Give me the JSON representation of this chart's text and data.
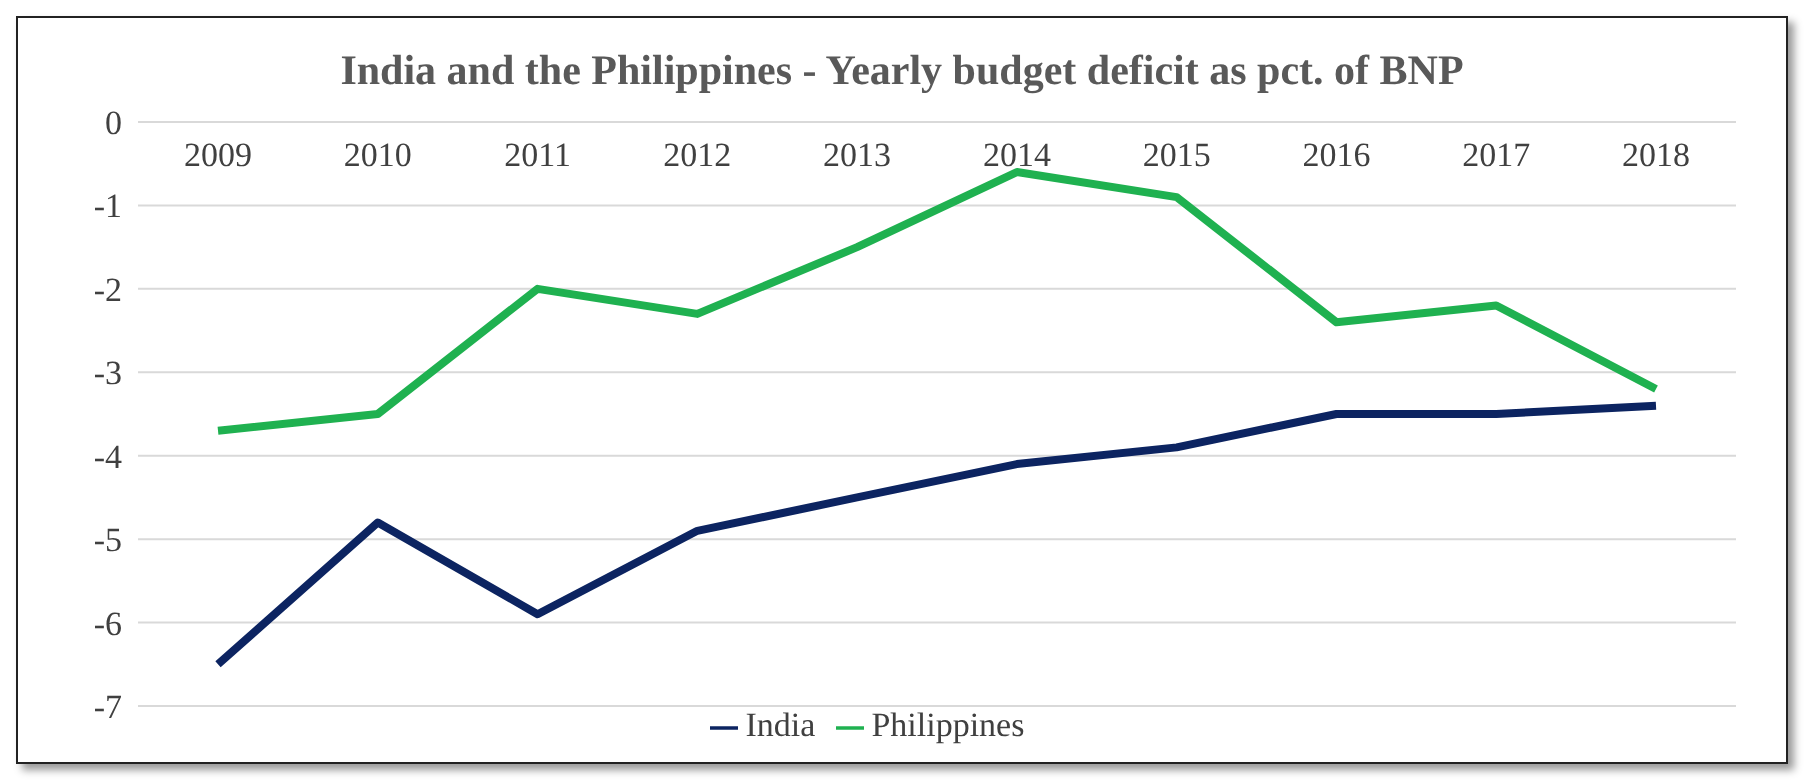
{
  "chart_data": {
    "type": "line",
    "title": "India and the Philippines - Yearly budget deficit as pct. of BNP",
    "categories": [
      "2009",
      "2010",
      "2011",
      "2012",
      "2013",
      "2014",
      "2015",
      "2016",
      "2017",
      "2018"
    ],
    "series": [
      {
        "name": "India",
        "color": "#0c2461",
        "values": [
          -6.5,
          -4.8,
          -5.9,
          -4.9,
          -4.5,
          -4.1,
          -3.9,
          -3.5,
          -3.5,
          -3.4
        ]
      },
      {
        "name": "Philippines",
        "color": "#1fb150",
        "values": [
          -3.7,
          -3.5,
          -2.0,
          -2.3,
          -1.5,
          -0.6,
          -0.9,
          -2.4,
          -2.2,
          -3.2
        ]
      }
    ],
    "ylim": [
      -7,
      0
    ],
    "yticks": [
      -7,
      -6,
      -5,
      -4,
      -3,
      -2,
      -1,
      0
    ],
    "grid": "y",
    "legend": "bottom",
    "marker": "none",
    "line_style": "solid"
  }
}
